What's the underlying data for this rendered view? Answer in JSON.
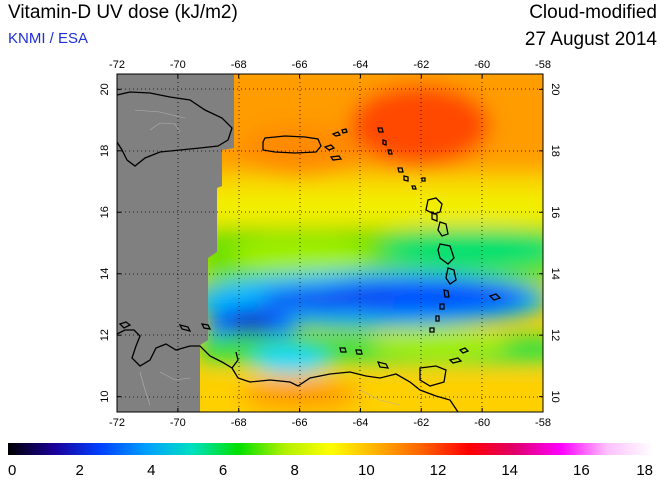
{
  "header": {
    "title": "Vitamin-D UV dose (kJ/m2)",
    "credit": "KNMI / ESA",
    "product": "Cloud-modified",
    "date": "27 August 2014"
  },
  "map": {
    "lon_range": [
      -72,
      -58
    ],
    "lat_range": [
      9.5,
      20.5
    ],
    "lon_ticks": [
      "-72",
      "-70",
      "-68",
      "-66",
      "-64",
      "-62",
      "-60",
      "-58"
    ],
    "lat_ticks": [
      "10",
      "12",
      "14",
      "16",
      "18",
      "20"
    ],
    "no_data_color": "#808080",
    "coastline_color": "#000000",
    "grid": "dotted"
  },
  "colorbar": {
    "min": 0,
    "max": 18,
    "labels": [
      "0",
      "2",
      "4",
      "6",
      "8",
      "10",
      "12",
      "14",
      "16",
      "18"
    ],
    "colors": [
      "#000000",
      "#1a0099",
      "#0040ff",
      "#00a0ff",
      "#00e0c0",
      "#00e000",
      "#b0f000",
      "#ffff00",
      "#ffb000",
      "#ff6000",
      "#ff0000",
      "#e0006a",
      "#ff00ff",
      "#ffc0ff",
      "#ffffff"
    ]
  }
}
